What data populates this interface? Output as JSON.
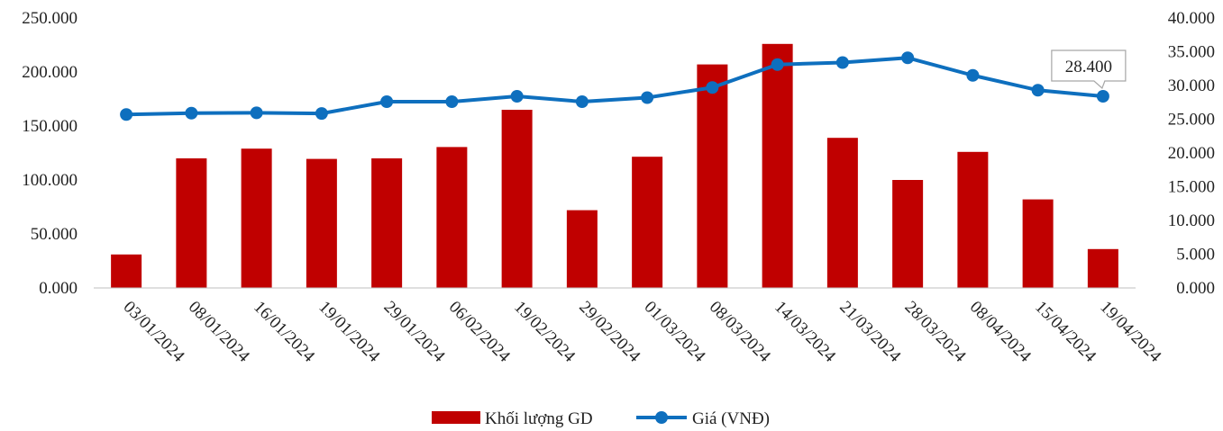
{
  "chart_data": {
    "type": "bar",
    "categories": [
      "03/01/2024",
      "08/01/2024",
      "16/01/2024",
      "19/01/2024",
      "29/01/2024",
      "06/02/2024",
      "19/02/2024",
      "29/02/2024",
      "01/03/2024",
      "08/03/2024",
      "14/03/2024",
      "21/03/2024",
      "28/03/2024",
      "08/04/2024",
      "15/04/2024",
      "19/04/2024"
    ],
    "series": [
      {
        "name": "Khối lượng GD",
        "type": "bar",
        "axis": "left",
        "color": "#C00000",
        "values": [
          31000,
          120000,
          129000,
          119500,
          120000,
          130500,
          165000,
          72000,
          121500,
          207000,
          226000,
          139000,
          100000,
          126000,
          82000,
          36000
        ]
      },
      {
        "name": "Giá (VNĐ)",
        "type": "line",
        "axis": "right",
        "color": "#0E6FBE",
        "values": [
          25700,
          25900,
          25950,
          25850,
          27600,
          27600,
          28400,
          27600,
          28200,
          29700,
          33100,
          33400,
          34100,
          31500,
          29300,
          28400
        ]
      }
    ],
    "left_axis": {
      "min": 0,
      "max": 250000,
      "ticks": [
        "0.000",
        "50.000",
        "100.000",
        "150.000",
        "200.000",
        "250.000"
      ]
    },
    "right_axis": {
      "min": 0,
      "max": 40000,
      "ticks": [
        "0.000",
        "5.000",
        "10.000",
        "15.000",
        "20.000",
        "25.000",
        "30.000",
        "35.000",
        "40.000"
      ]
    },
    "annotation": {
      "index": 15,
      "text": "28.400"
    },
    "legend": {
      "placement": "bottom",
      "items": [
        "Khối lượng GD",
        "Giá (VNĐ)"
      ]
    },
    "grid": false
  }
}
